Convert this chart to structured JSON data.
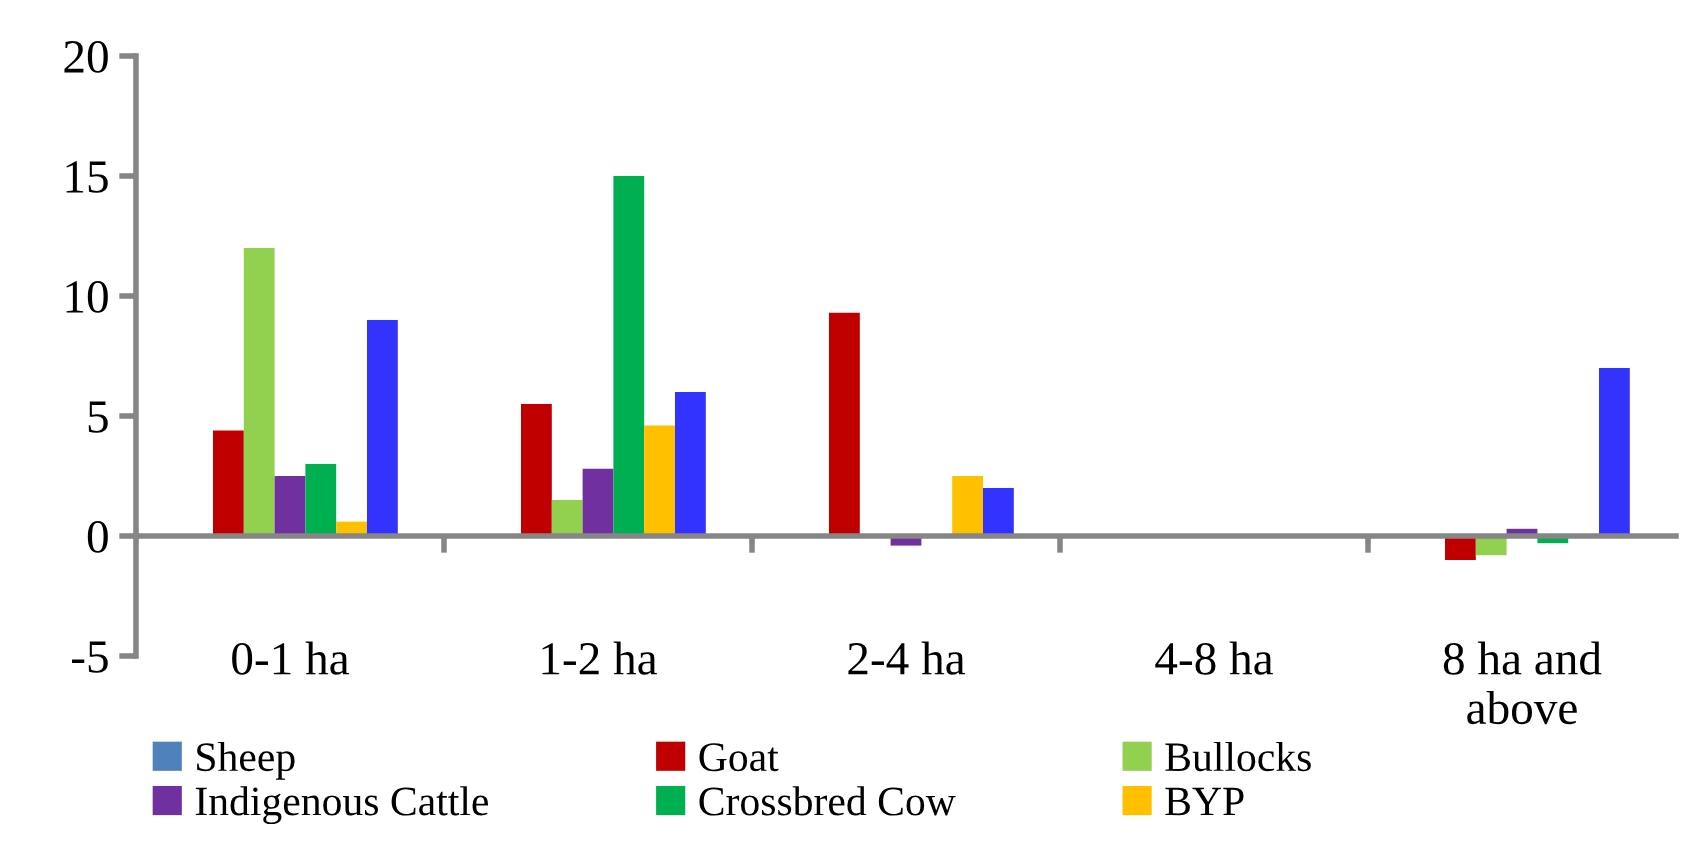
{
  "chart_data": {
    "type": "bar",
    "categories": [
      "0-1 ha",
      "1-2 ha",
      "2-4 ha",
      "4-8 ha",
      "8 ha and\nabove"
    ],
    "series": [
      {
        "name": "Sheep",
        "color": "#4f81bd",
        "values": [
          0,
          0,
          0,
          0,
          0
        ]
      },
      {
        "name": "Goat",
        "color": "#c00000",
        "values": [
          4.4,
          5.5,
          9.3,
          0,
          -1.0
        ]
      },
      {
        "name": "Bullocks",
        "color": "#92d050",
        "values": [
          12,
          1.5,
          0,
          0,
          -0.8
        ]
      },
      {
        "name": "Indigenous Cattle",
        "color": "#7030a0",
        "values": [
          2.5,
          2.8,
          -0.4,
          0,
          0.3
        ]
      },
      {
        "name": "Crossbred Cow",
        "color": "#00b050",
        "values": [
          3.0,
          15,
          0,
          0,
          -0.3
        ]
      },
      {
        "name": "BYP",
        "color": "#ffc000",
        "values": [
          0.6,
          4.6,
          2.5,
          0,
          0
        ]
      },
      {
        "color": "#3333ff",
        "values": [
          9.0,
          6.0,
          2.0,
          0,
          7.0
        ]
      }
    ],
    "ylim": [
      -5,
      20
    ],
    "yticks": [
      -5,
      0,
      5,
      10,
      15,
      20
    ],
    "grid": false,
    "legend": "bottom"
  }
}
